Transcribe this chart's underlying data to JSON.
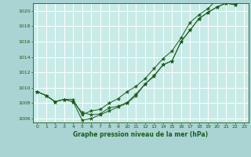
{
  "title": "Graphe pression niveau de la mer (hPa)",
  "background_color": "#aad4d4",
  "plot_bg_color": "#c8ebe8",
  "grid_color": "#ffffff",
  "line_color": "#1a5c1a",
  "xlim": [
    -0.5,
    23.5
  ],
  "ylim": [
    1005.5,
    1021.0
  ],
  "yticks": [
    1006,
    1008,
    1010,
    1012,
    1014,
    1016,
    1018,
    1020
  ],
  "xticks": [
    0,
    1,
    2,
    3,
    4,
    5,
    6,
    7,
    8,
    9,
    10,
    11,
    12,
    13,
    14,
    15,
    16,
    17,
    18,
    19,
    20,
    21,
    22,
    23
  ],
  "line1": [
    1009.5,
    1009.0,
    1008.2,
    1008.5,
    1008.2,
    1006.8,
    1006.5,
    1006.6,
    1007.4,
    1007.6,
    1008.1,
    1009.2,
    1010.5,
    1011.6,
    1013.0,
    1013.5,
    1016.0,
    1017.5,
    1019.0,
    1019.8,
    1020.5,
    1021.0,
    1020.8,
    1021.5
  ],
  "line2": [
    1009.5,
    1009.0,
    1008.2,
    1008.5,
    1008.2,
    1005.8,
    1006.0,
    1006.5,
    1007.0,
    1007.5,
    1008.0,
    1009.0,
    1010.5,
    1011.5,
    1013.0,
    1013.5,
    1016.0,
    1017.5,
    1019.0,
    1019.8,
    1020.5,
    1021.0,
    1020.8,
    1021.5
  ],
  "line3": [
    1009.5,
    1009.0,
    1008.2,
    1008.5,
    1008.5,
    1006.5,
    1007.0,
    1007.2,
    1008.0,
    1008.6,
    1009.5,
    1010.2,
    1011.2,
    1012.5,
    1013.8,
    1014.8,
    1016.5,
    1018.5,
    1019.5,
    1020.3,
    1021.5,
    1022.0,
    1021.5,
    1022.0
  ]
}
